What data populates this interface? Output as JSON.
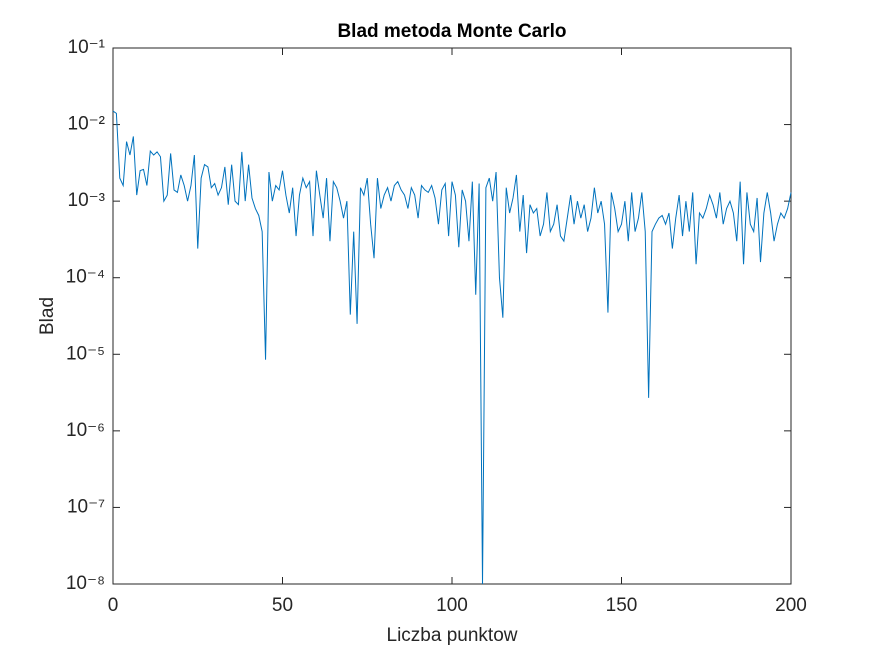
{
  "chart_data": {
    "type": "line",
    "title": "Blad metoda Monte Carlo",
    "x_label": "Liczba punktow",
    "y_label": "Blad",
    "color": "#0072bd",
    "log_y": true,
    "grid": false,
    "xlim": [
      0,
      200
    ],
    "xticks": [
      0,
      50,
      100,
      150,
      200
    ],
    "ylim": [
      1e-08,
      0.1
    ],
    "yticks": [
      {
        "value": 1e-08,
        "label": "10⁻⁸"
      },
      {
        "value": 1e-07,
        "label": "10⁻⁷"
      },
      {
        "value": 1e-06,
        "label": "10⁻⁶"
      },
      {
        "value": 1e-05,
        "label": "10⁻⁵"
      },
      {
        "value": 0.0001,
        "label": "10⁻⁴"
      },
      {
        "value": 0.001,
        "label": "10⁻³"
      },
      {
        "value": 0.01,
        "label": "10⁻²"
      },
      {
        "value": 0.1,
        "label": "10⁻¹"
      }
    ],
    "x": [
      0,
      1,
      2,
      3,
      4,
      5,
      6,
      7,
      8,
      9,
      10,
      11,
      12,
      13,
      14,
      15,
      16,
      17,
      18,
      19,
      20,
      21,
      22,
      23,
      24,
      25,
      26,
      27,
      28,
      29,
      30,
      31,
      32,
      33,
      34,
      35,
      36,
      37,
      38,
      39,
      40,
      41,
      42,
      43,
      44,
      45,
      46,
      47,
      48,
      49,
      50,
      51,
      52,
      53,
      54,
      55,
      56,
      57,
      58,
      59,
      60,
      61,
      62,
      63,
      64,
      65,
      66,
      67,
      68,
      69,
      70,
      71,
      72,
      73,
      74,
      75,
      76,
      77,
      78,
      79,
      80,
      81,
      82,
      83,
      84,
      85,
      86,
      87,
      88,
      89,
      90,
      91,
      92,
      93,
      94,
      95,
      96,
      97,
      98,
      99,
      100,
      101,
      102,
      103,
      104,
      105,
      106,
      107,
      108,
      109,
      110,
      111,
      112,
      113,
      114,
      115,
      116,
      117,
      118,
      119,
      120,
      121,
      122,
      123,
      124,
      125,
      126,
      127,
      128,
      129,
      130,
      131,
      132,
      133,
      134,
      135,
      136,
      137,
      138,
      139,
      140,
      141,
      142,
      143,
      144,
      145,
      146,
      147,
      148,
      149,
      150,
      151,
      152,
      153,
      154,
      155,
      156,
      157,
      158,
      159,
      160,
      161,
      162,
      163,
      164,
      165,
      166,
      167,
      168,
      169,
      170,
      171,
      172,
      173,
      174,
      175,
      176,
      177,
      178,
      179,
      180,
      181,
      182,
      183,
      184,
      185,
      186,
      187,
      188,
      189,
      190,
      191,
      192,
      193,
      194,
      195,
      196,
      197,
      198,
      199,
      200
    ],
    "values": [
      0.015,
      0.014,
      0.002,
      0.0016,
      0.006,
      0.004,
      0.007,
      0.0012,
      0.0025,
      0.0026,
      0.0016,
      0.0045,
      0.004,
      0.0044,
      0.0038,
      0.001,
      0.0012,
      0.0042,
      0.0014,
      0.0013,
      0.0022,
      0.0016,
      0.001,
      0.0016,
      0.004,
      0.00024,
      0.002,
      0.003,
      0.0028,
      0.0015,
      0.0017,
      0.0012,
      0.0015,
      0.0028,
      0.0009,
      0.003,
      0.001,
      0.0009,
      0.0044,
      0.001,
      0.003,
      0.0011,
      0.0008,
      0.00065,
      0.0004,
      8.5e-06,
      0.0024,
      0.001,
      0.0016,
      0.0014,
      0.0025,
      0.0012,
      0.0007,
      0.0015,
      0.00035,
      0.0012,
      0.002,
      0.0015,
      0.0018,
      0.00035,
      0.0025,
      0.0012,
      0.0006,
      0.002,
      0.0003,
      0.0018,
      0.0015,
      0.001,
      0.0006,
      0.001,
      3.3e-05,
      0.0004,
      2.5e-05,
      0.0015,
      0.0012,
      0.002,
      0.0005,
      0.00018,
      0.002,
      0.0008,
      0.0012,
      0.0015,
      0.001,
      0.0016,
      0.0018,
      0.0014,
      0.0012,
      0.0008,
      0.0015,
      0.0012,
      0.0006,
      0.0016,
      0.0014,
      0.0013,
      0.0016,
      0.0011,
      0.0005,
      0.0014,
      0.0017,
      0.00035,
      0.0018,
      0.0012,
      0.00025,
      0.0014,
      0.001,
      0.0003,
      0.0018,
      6e-05,
      0.0017,
      1e-08,
      0.0015,
      0.002,
      0.001,
      0.0024,
      0.0001,
      3e-05,
      0.0015,
      0.0007,
      0.0011,
      0.0022,
      0.0004,
      0.0012,
      0.00021,
      0.0009,
      0.0007,
      0.0008,
      0.00035,
      0.0005,
      0.0013,
      0.0004,
      0.0005,
      0.0009,
      0.00035,
      0.0003,
      0.0006,
      0.0012,
      0.0005,
      0.001,
      0.0006,
      0.0009,
      0.0004,
      0.0006,
      0.0015,
      0.0007,
      0.001,
      0.0005,
      3.5e-05,
      0.0013,
      0.0008,
      0.0004,
      0.0005,
      0.001,
      0.0003,
      0.0013,
      0.0004,
      0.0006,
      0.0013,
      0.0004,
      2.7e-06,
      0.0004,
      0.0005,
      0.0006,
      0.00065,
      0.0005,
      0.0007,
      0.00024,
      0.0006,
      0.0012,
      0.00035,
      0.001,
      0.0004,
      0.0013,
      0.00015,
      0.0007,
      0.0006,
      0.0008,
      0.0012,
      0.0009,
      0.0006,
      0.0013,
      0.0005,
      0.0008,
      0.001,
      0.0007,
      0.0003,
      0.0018,
      0.00015,
      0.0013,
      0.0005,
      0.0004,
      0.0011,
      0.00016,
      0.0007,
      0.0013,
      0.0007,
      0.0003,
      0.0005,
      0.0007,
      0.0006,
      0.0008,
      0.0013
    ]
  }
}
